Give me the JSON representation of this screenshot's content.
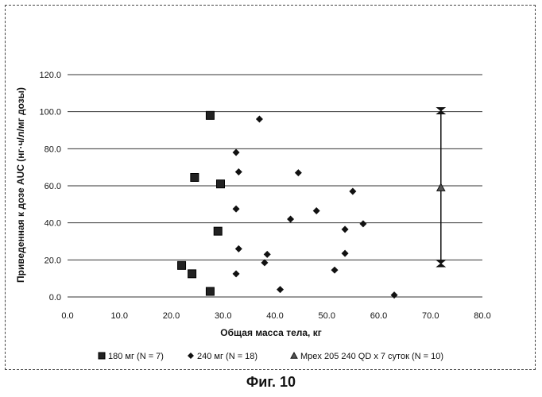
{
  "figure_caption": "Фиг. 10",
  "chart_data": {
    "type": "scatter",
    "title": "",
    "xlabel": "Общая масса тела, кг",
    "ylabel": "Приведенная к дозе AUC (нг·ч/л/мг дозы)",
    "xlim": [
      0,
      80
    ],
    "ylim": [
      0,
      120
    ],
    "x_ticks": [
      "0.0",
      "10.0",
      "20.0",
      "30.0",
      "40.0",
      "50.0",
      "60.0",
      "70.0",
      "80.0"
    ],
    "y_ticks": [
      "0.0",
      "20.0",
      "40.0",
      "60.0",
      "80.0",
      "100.0",
      "120.0"
    ],
    "grid": "horizontal",
    "legend_position": "bottom",
    "series": [
      {
        "name": "180 мг (N = 7)",
        "marker": "square",
        "color": "#222222",
        "points": [
          [
            27.5,
            98
          ],
          [
            24.5,
            64.5
          ],
          [
            29.5,
            61
          ],
          [
            29,
            35.5
          ],
          [
            22,
            17
          ],
          [
            24,
            12.5
          ],
          [
            27.5,
            3
          ]
        ]
      },
      {
        "name": "240 мг (N = 18)",
        "marker": "diamond",
        "color": "#222222",
        "points": [
          [
            37,
            96
          ],
          [
            32.5,
            78
          ],
          [
            33,
            67.5
          ],
          [
            44.5,
            67
          ],
          [
            32.5,
            47.5
          ],
          [
            48,
            46.5
          ],
          [
            43,
            42
          ],
          [
            57,
            39.5
          ],
          [
            53.5,
            36.5
          ],
          [
            33,
            26
          ],
          [
            38.5,
            23
          ],
          [
            53.5,
            23.5
          ],
          [
            38,
            18.5
          ],
          [
            51.5,
            14.5
          ],
          [
            32.5,
            12.5
          ],
          [
            41,
            4
          ],
          [
            63,
            1
          ],
          [
            55,
            57
          ]
        ]
      },
      {
        "name": "Mpex 205 240 QD x 7 суток (N = 10)",
        "marker": "triangle",
        "color": "#222222",
        "range_bar": {
          "x": 72,
          "low": 18,
          "mean": 59,
          "high": 100.5
        }
      }
    ]
  }
}
